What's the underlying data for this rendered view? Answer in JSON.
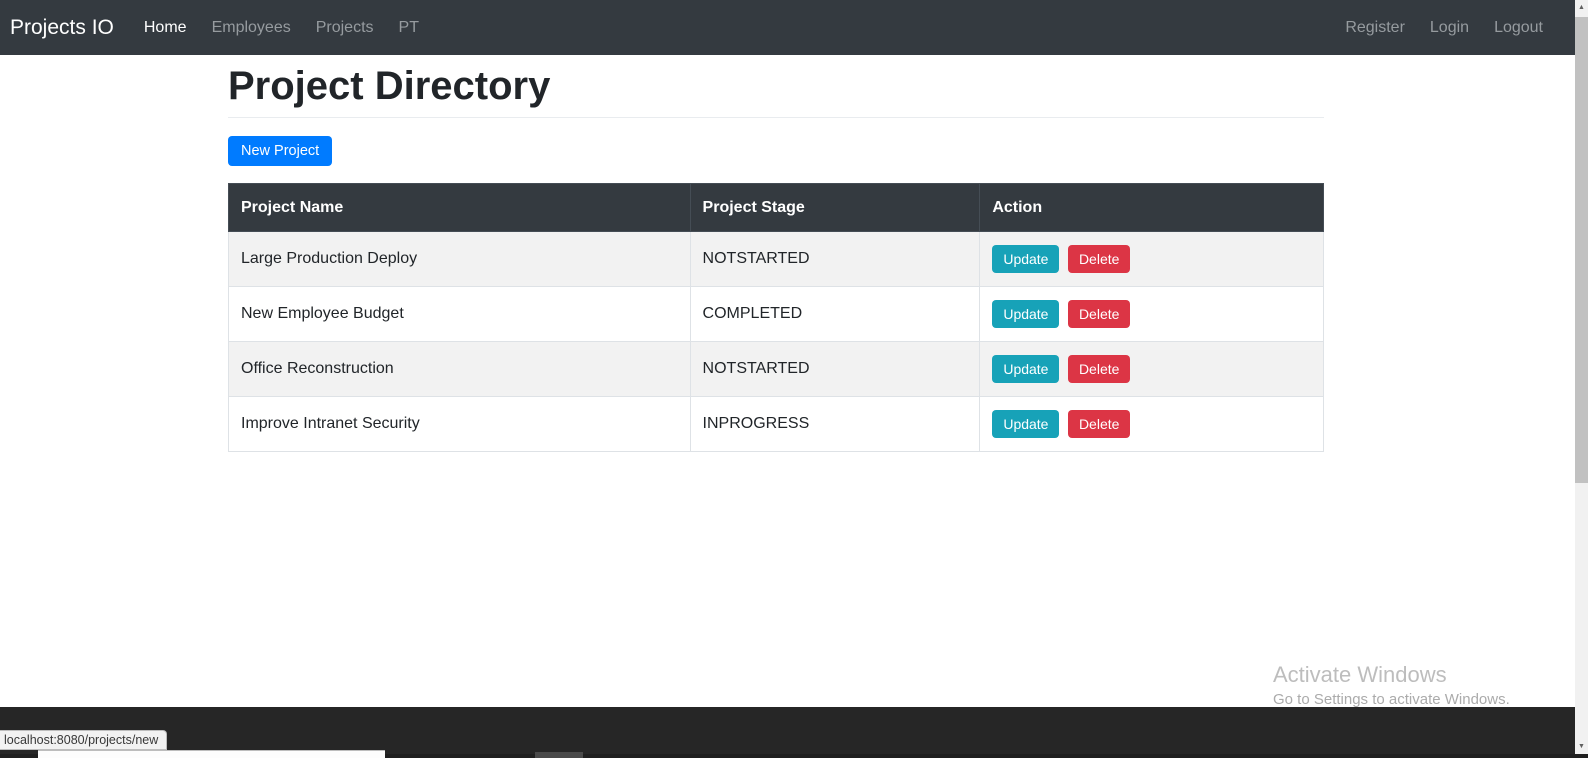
{
  "navbar": {
    "brand": "Projects IO",
    "links": [
      {
        "label": "Home",
        "active": true
      },
      {
        "label": "Employees",
        "active": false
      },
      {
        "label": "Projects",
        "active": false
      },
      {
        "label": "PT",
        "active": false
      }
    ],
    "right_links": [
      {
        "label": "Register"
      },
      {
        "label": "Login"
      },
      {
        "label": "Logout"
      }
    ]
  },
  "main": {
    "title": "Project Directory",
    "new_project_label": "New Project",
    "table": {
      "headers": [
        "Project Name",
        "Project Stage",
        "Action"
      ],
      "update_label": "Update",
      "delete_label": "Delete",
      "rows": [
        {
          "name": "Large Production Deploy",
          "stage": "NOTSTARTED"
        },
        {
          "name": "New Employee Budget",
          "stage": "COMPLETED"
        },
        {
          "name": "Office Reconstruction",
          "stage": "NOTSTARTED"
        },
        {
          "name": "Improve Intranet Security",
          "stage": "INPROGRESS"
        }
      ]
    }
  },
  "watermark": {
    "line1": "Activate Windows",
    "line2": "Go to Settings to activate Windows."
  },
  "status_bar": {
    "url": "localhost:8080/projects/new"
  },
  "scrollbar": {
    "up_icon": "▲",
    "down_icon": "▼"
  },
  "colors": {
    "primary": "#007bff",
    "info": "#17a2b8",
    "danger": "#dc3545",
    "navbar": "#343a40",
    "footer_bar": "#262626"
  }
}
